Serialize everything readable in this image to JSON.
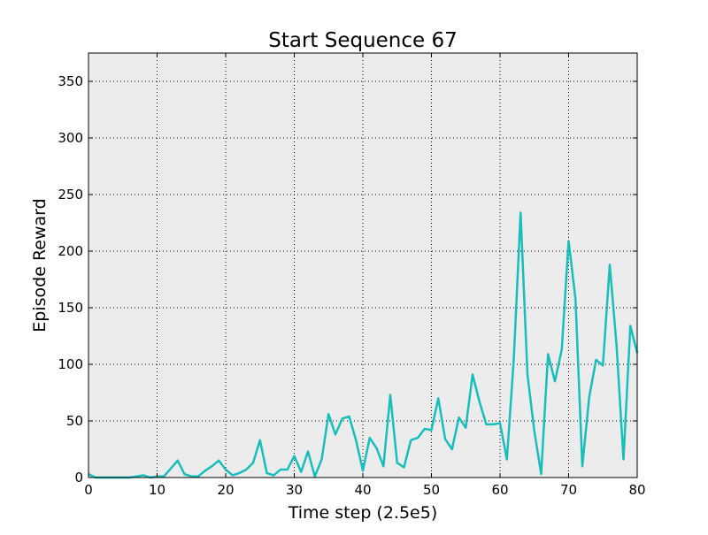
{
  "chart_data": {
    "type": "line",
    "title": "Start Sequence 67",
    "xlabel": "Time step (2.5e5)",
    "ylabel": "Episode Reward",
    "xlim": [
      0,
      80
    ],
    "ylim": [
      0,
      375
    ],
    "xticks": [
      0,
      10,
      20,
      30,
      40,
      50,
      60,
      70,
      80
    ],
    "yticks": [
      0,
      50,
      100,
      150,
      200,
      250,
      300,
      350
    ],
    "grid": true,
    "background": "#ececec",
    "series": [
      {
        "color": "#17bebb",
        "x": [
          0,
          1,
          2,
          3,
          4,
          5,
          6,
          7,
          8,
          9,
          10,
          11,
          12,
          13,
          14,
          15,
          16,
          17,
          18,
          19,
          20,
          21,
          22,
          23,
          24,
          25,
          26,
          27,
          28,
          29,
          30,
          31,
          32,
          33,
          34,
          35,
          36,
          37,
          38,
          39,
          40,
          41,
          42,
          43,
          44,
          45,
          46,
          47,
          48,
          49,
          50,
          51,
          52,
          53,
          54,
          55,
          56,
          57,
          58,
          59,
          60,
          61,
          62,
          63,
          64,
          65,
          66,
          67,
          68,
          69,
          70,
          71,
          72,
          73,
          74,
          75,
          76,
          77,
          78,
          79,
          80
        ],
        "y": [
          3,
          0,
          0,
          0,
          0,
          0,
          0,
          1,
          2,
          0,
          1,
          1,
          8,
          15,
          3,
          1,
          1,
          6,
          10,
          15,
          7,
          2,
          4,
          7,
          13,
          33,
          4,
          2,
          7,
          7,
          19,
          5,
          23,
          1,
          16,
          56,
          38,
          52,
          54,
          33,
          6,
          35,
          26,
          10,
          73,
          13,
          9,
          33,
          35,
          43,
          42,
          70,
          34,
          25,
          53,
          44,
          91,
          67,
          47,
          47,
          48,
          16,
          104,
          234,
          91,
          41,
          3,
          109,
          85,
          113,
          209,
          158,
          10,
          71,
          104,
          99,
          188,
          116,
          16,
          134,
          110
        ]
      }
    ]
  }
}
